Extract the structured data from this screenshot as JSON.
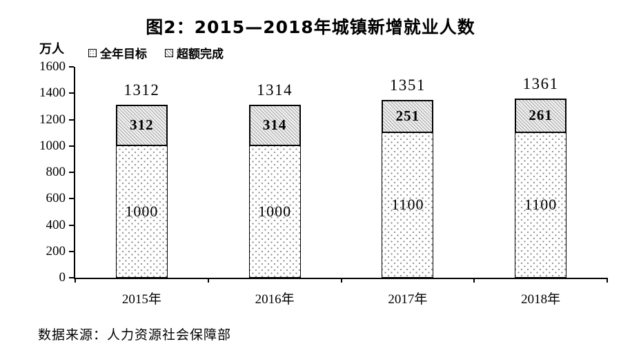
{
  "title": "图2：2015—2018年城镇新增就业人数",
  "y_unit_label": "万人",
  "source": "数据来源：人力资源社会保障部",
  "colors": {
    "foreground": "#000000",
    "background": "#ffffff",
    "pattern_gray": "#8f8f8f"
  },
  "chart_data": {
    "type": "bar",
    "stacked": true,
    "title": "图2：2015—2018年城镇新增就业人数",
    "ylabel": "万人",
    "xlabel": "",
    "categories": [
      "2015年",
      "2016年",
      "2017年",
      "2018年"
    ],
    "series": [
      {
        "name": "全年目标",
        "pattern": "dots",
        "values": [
          1000,
          1000,
          1100,
          1100
        ]
      },
      {
        "name": "超额完成",
        "pattern": "hatch",
        "values": [
          312,
          314,
          251,
          261
        ]
      }
    ],
    "totals": [
      1312,
      1314,
      1351,
      1361
    ],
    "ylim": [
      0,
      1600
    ],
    "yticks": [
      0,
      200,
      400,
      600,
      800,
      1000,
      1200,
      1400,
      1600
    ],
    "grid": false,
    "legend_position": "top-left"
  }
}
